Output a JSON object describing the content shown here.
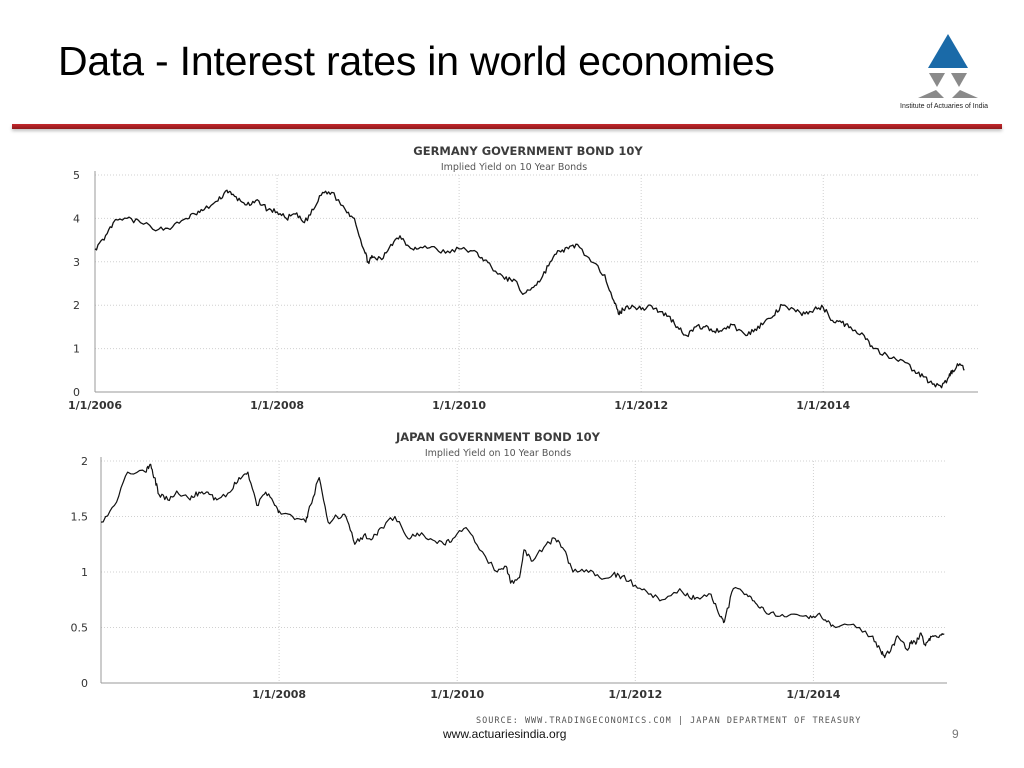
{
  "slide": {
    "title": "Data - Interest rates in world economies",
    "footer_url": "www.actuariesindia.org",
    "page_number": "9"
  },
  "logo": {
    "caption": "Institute of Actuaries of India",
    "primary_color": "#1a6aa8",
    "secondary_color": "#8a8a8a"
  },
  "colors": {
    "accent_rule": "#c0272d",
    "series_line": "#111111",
    "grid": "#d0d0d0"
  },
  "source_text": "SOURCE: WWW.TRADINGECONOMICS.COM | JAPAN DEPARTMENT OF TREASURY",
  "chart_data": [
    {
      "type": "line",
      "title": "GERMANY GOVERNMENT BOND 10Y",
      "subtitle": "Implied Yield on 10 Year Bonds",
      "xlim": [
        2006.0,
        2015.7
      ],
      "ylim": [
        0,
        5
      ],
      "yticks": [
        0,
        1,
        2,
        3,
        4,
        5
      ],
      "xtick_labels": [
        "1/1/2006",
        "1/1/2008",
        "1/1/2010",
        "1/1/2012",
        "1/1/2014"
      ],
      "xtick_values": [
        2006,
        2008,
        2010,
        2012,
        2014
      ],
      "grid": true,
      "series": [
        {
          "name": "Germany 10Y yield",
          "x": [
            2006.0,
            2006.1,
            2006.2,
            2006.35,
            2006.5,
            2006.7,
            2006.85,
            2007.0,
            2007.1,
            2007.2,
            2007.35,
            2007.45,
            2007.5,
            2007.6,
            2007.7,
            2007.8,
            2007.9,
            2008.0,
            2008.1,
            2008.2,
            2008.3,
            2008.4,
            2008.5,
            2008.6,
            2008.75,
            2008.85,
            2008.95,
            2009.0,
            2009.05,
            2009.15,
            2009.25,
            2009.35,
            2009.45,
            2009.55,
            2009.7,
            2009.85,
            2010.0,
            2010.15,
            2010.25,
            2010.35,
            2010.5,
            2010.6,
            2010.7,
            2010.8,
            2010.9,
            2011.0,
            2011.1,
            2011.2,
            2011.3,
            2011.45,
            2011.6,
            2011.7,
            2011.75,
            2011.8,
            2011.9,
            2012.0,
            2012.1,
            2012.2,
            2012.3,
            2012.4,
            2012.5,
            2012.6,
            2012.7,
            2012.8,
            2012.9,
            2013.0,
            2013.15,
            2013.25,
            2013.35,
            2013.45,
            2013.55,
            2013.7,
            2013.8,
            2013.9,
            2014.0,
            2014.1,
            2014.2,
            2014.3,
            2014.45,
            2014.55,
            2014.7,
            2014.85,
            2015.0,
            2015.1,
            2015.2,
            2015.3,
            2015.38,
            2015.42,
            2015.5,
            2015.55
          ],
          "values": [
            3.3,
            3.5,
            3.9,
            4.0,
            3.9,
            3.75,
            3.8,
            4.0,
            4.1,
            4.2,
            4.4,
            4.65,
            4.55,
            4.4,
            4.3,
            4.4,
            4.2,
            4.15,
            4.0,
            4.1,
            3.9,
            4.2,
            4.6,
            4.6,
            4.2,
            4.0,
            3.3,
            3.0,
            3.1,
            3.05,
            3.4,
            3.6,
            3.35,
            3.3,
            3.35,
            3.2,
            3.3,
            3.25,
            3.1,
            2.9,
            2.6,
            2.6,
            2.25,
            2.4,
            2.6,
            3.0,
            3.25,
            3.3,
            3.4,
            3.0,
            2.7,
            2.1,
            1.8,
            1.9,
            2.0,
            1.9,
            2.0,
            1.85,
            1.75,
            1.5,
            1.3,
            1.5,
            1.5,
            1.4,
            1.45,
            1.55,
            1.3,
            1.45,
            1.6,
            1.75,
            2.0,
            1.85,
            1.8,
            1.9,
            1.95,
            1.65,
            1.6,
            1.5,
            1.3,
            1.0,
            0.85,
            0.75,
            0.5,
            0.35,
            0.18,
            0.1,
            0.35,
            0.5,
            0.65,
            0.5
          ]
        }
      ]
    },
    {
      "type": "line",
      "title": "JAPAN GOVERNMENT BOND 10Y",
      "subtitle": "Implied Yield on 10 Year Bonds",
      "xlim": [
        2006.0,
        2015.5
      ],
      "ylim": [
        0,
        2
      ],
      "yticks": [
        0,
        0.5,
        1,
        1.5,
        2
      ],
      "ytick_labels": [
        "0",
        "0.5",
        "1",
        "1.5",
        "2"
      ],
      "xtick_labels": [
        "1/1/2008",
        "1/1/2010",
        "1/1/2012",
        "1/1/2014"
      ],
      "xtick_values": [
        2008,
        2010,
        2012,
        2014
      ],
      "grid": true,
      "series": [
        {
          "name": "Japan 10Y yield",
          "x": [
            2006.0,
            2006.15,
            2006.3,
            2006.5,
            2006.55,
            2006.6,
            2006.65,
            2006.75,
            2006.85,
            2007.0,
            2007.1,
            2007.2,
            2007.3,
            2007.45,
            2007.55,
            2007.65,
            2007.75,
            2007.85,
            2007.95,
            2008.0,
            2008.15,
            2008.3,
            2008.35,
            2008.45,
            2008.55,
            2008.65,
            2008.75,
            2008.85,
            2008.95,
            2009.05,
            2009.15,
            2009.3,
            2009.45,
            2009.55,
            2009.7,
            2009.85,
            2009.95,
            2010.1,
            2010.25,
            2010.45,
            2010.55,
            2010.6,
            2010.7,
            2010.75,
            2010.85,
            2011.0,
            2011.1,
            2011.2,
            2011.3,
            2011.45,
            2011.6,
            2011.75,
            2011.85,
            2012.0,
            2012.15,
            2012.3,
            2012.5,
            2012.6,
            2012.7,
            2012.85,
            2012.95,
            2013.0,
            2013.1,
            2013.25,
            2013.35,
            2013.45,
            2013.6,
            2013.75,
            2013.95,
            2014.05,
            2014.15,
            2014.25,
            2014.45,
            2014.65,
            2014.75,
            2014.8,
            2014.9,
            2014.95,
            2015.05,
            2015.1,
            2015.15,
            2015.2,
            2015.25,
            2015.3,
            2015.35,
            2015.42,
            2015.47
          ],
          "values": [
            1.45,
            1.6,
            1.9,
            1.9,
            1.97,
            1.85,
            1.7,
            1.65,
            1.73,
            1.65,
            1.72,
            1.72,
            1.65,
            1.72,
            1.85,
            1.9,
            1.6,
            1.72,
            1.6,
            1.55,
            1.5,
            1.45,
            1.6,
            1.85,
            1.45,
            1.5,
            1.5,
            1.25,
            1.33,
            1.3,
            1.4,
            1.5,
            1.3,
            1.35,
            1.3,
            1.25,
            1.3,
            1.4,
            1.2,
            1.0,
            1.05,
            0.9,
            0.95,
            1.2,
            1.1,
            1.25,
            1.3,
            1.2,
            1.0,
            1.02,
            0.95,
            0.98,
            0.96,
            0.88,
            0.8,
            0.75,
            0.85,
            0.78,
            0.77,
            0.8,
            0.6,
            0.55,
            0.85,
            0.8,
            0.72,
            0.65,
            0.6,
            0.62,
            0.58,
            0.62,
            0.55,
            0.5,
            0.53,
            0.42,
            0.3,
            0.23,
            0.35,
            0.42,
            0.3,
            0.38,
            0.35,
            0.45,
            0.35,
            0.4,
            0.42,
            0.43,
            0.44
          ]
        }
      ]
    }
  ]
}
